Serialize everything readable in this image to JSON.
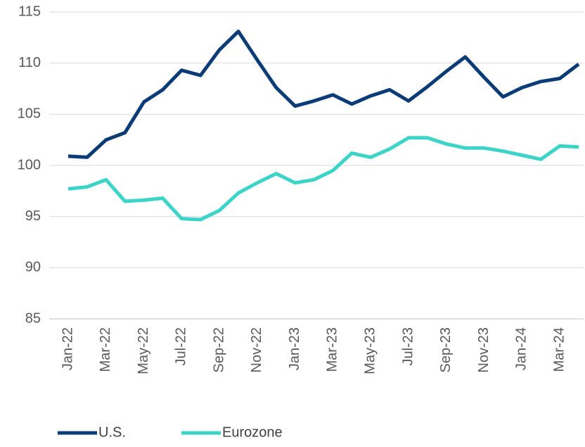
{
  "chart_data": {
    "type": "line",
    "categories": [
      "Jan-22",
      null,
      "Mar-22",
      null,
      "May-22",
      null,
      "Jul-22",
      null,
      "Sep-22",
      null,
      "Nov-22",
      null,
      "Jan-23",
      null,
      "Mar-23",
      null,
      "May-23",
      null,
      "Jul-23",
      null,
      "Sep-23",
      null,
      "Nov-23",
      null,
      "Jan-24",
      null,
      "Mar-24",
      null
    ],
    "series": [
      {
        "name": "U.S.",
        "color": "#0b3c77",
        "values": [
          100.9,
          100.8,
          102.5,
          103.2,
          106.2,
          107.4,
          109.3,
          108.8,
          111.3,
          113.1,
          110.3,
          107.6,
          105.8,
          106.3,
          106.9,
          106.0,
          106.8,
          107.4,
          106.3,
          107.7,
          109.2,
          110.6,
          108.6,
          106.7,
          107.6,
          108.2,
          108.5,
          109.9
        ]
      },
      {
        "name": "Eurozone",
        "color": "#3cd3c8",
        "values": [
          97.7,
          97.9,
          98.6,
          96.5,
          96.6,
          96.8,
          94.8,
          94.7,
          95.6,
          97.3,
          98.3,
          99.2,
          98.3,
          98.6,
          99.5,
          101.2,
          100.8,
          101.6,
          102.7,
          102.7,
          102.1,
          101.7,
          101.7,
          101.4,
          101.0,
          100.6,
          101.9,
          101.8
        ]
      }
    ],
    "ylim": [
      85,
      115
    ],
    "yticks": [
      85,
      90,
      95,
      100,
      105,
      110,
      115
    ],
    "grid": true,
    "legend": "bottom"
  }
}
